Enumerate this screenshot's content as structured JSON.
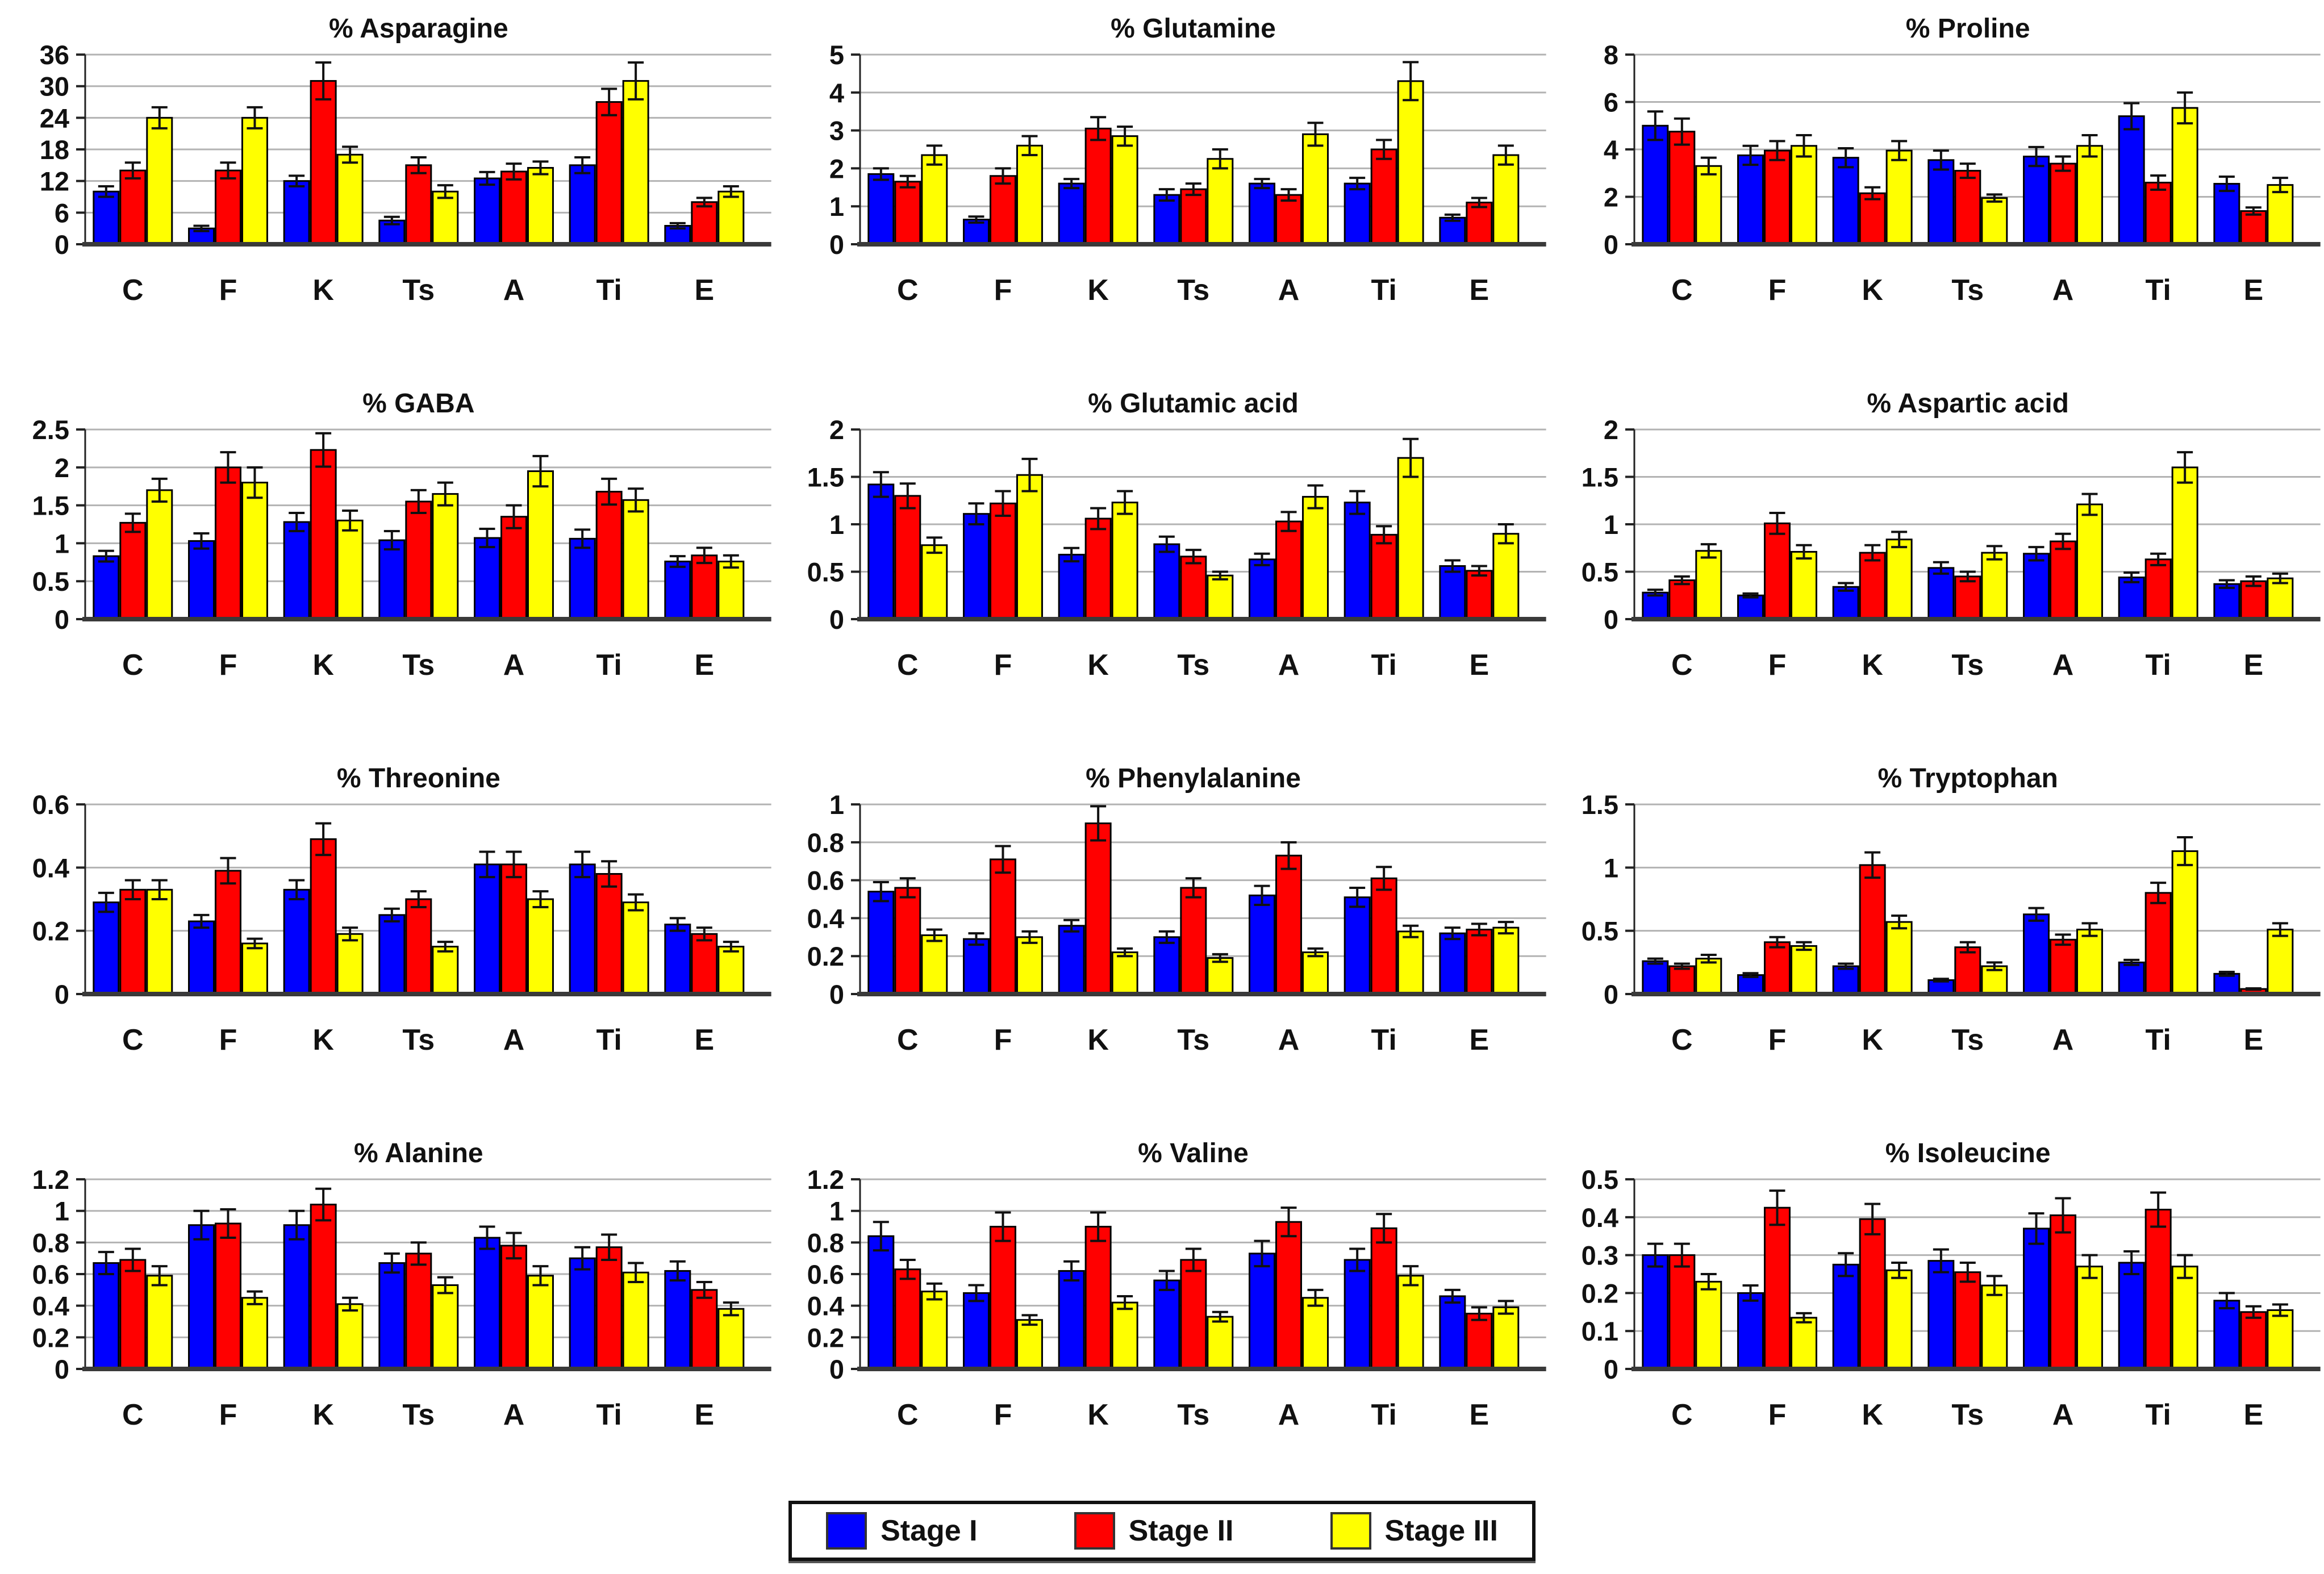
{
  "legend": {
    "items": [
      {
        "label": "Stage I",
        "color": "#0000ff"
      },
      {
        "label": "Stage II",
        "color": "#ff0000"
      },
      {
        "label": "Stage III",
        "color": "#ffff00"
      }
    ]
  },
  "chart_data": [
    {
      "type": "bar",
      "title": "% Asparagine",
      "categories": [
        "C",
        "F",
        "K",
        "Ts",
        "A",
        "Ti",
        "E"
      ],
      "ylim": [
        0,
        36
      ],
      "yticks": [
        0,
        6,
        12,
        18,
        24,
        30,
        36
      ],
      "grid": true,
      "legend_position": "bottom-shared",
      "series": [
        {
          "name": "Stage I",
          "color": "#0000ff",
          "values": [
            10,
            3,
            12,
            4.5,
            12.5,
            15,
            3.5
          ],
          "errors": [
            1,
            0.5,
            1,
            0.7,
            1.2,
            1.5,
            0.5
          ]
        },
        {
          "name": "Stage II",
          "color": "#ff0000",
          "values": [
            14,
            14,
            31,
            15,
            13.8,
            27,
            8
          ],
          "errors": [
            1.5,
            1.5,
            3.5,
            1.5,
            1.5,
            2.5,
            0.8
          ]
        },
        {
          "name": "Stage III",
          "color": "#ffff00",
          "values": [
            24,
            24,
            17,
            10,
            14.5,
            31,
            10
          ],
          "errors": [
            2,
            2,
            1.5,
            1.2,
            1.2,
            3.5,
            1
          ]
        }
      ]
    },
    {
      "type": "bar",
      "title": "% Glutamine",
      "categories": [
        "C",
        "F",
        "K",
        "Ts",
        "A",
        "Ti",
        "E"
      ],
      "ylim": [
        0,
        5
      ],
      "yticks": [
        0,
        1,
        2,
        3,
        4,
        5
      ],
      "grid": true,
      "series": [
        {
          "name": "Stage I",
          "color": "#0000ff",
          "values": [
            1.85,
            0.65,
            1.6,
            1.3,
            1.6,
            1.6,
            0.7
          ],
          "errors": [
            0.15,
            0.08,
            0.12,
            0.15,
            0.12,
            0.15,
            0.08
          ]
        },
        {
          "name": "Stage II",
          "color": "#ff0000",
          "values": [
            1.65,
            1.8,
            3.05,
            1.45,
            1.3,
            2.5,
            1.1
          ],
          "errors": [
            0.15,
            0.2,
            0.3,
            0.15,
            0.15,
            0.25,
            0.12
          ]
        },
        {
          "name": "Stage III",
          "color": "#ffff00",
          "values": [
            2.35,
            2.6,
            2.85,
            2.25,
            2.9,
            4.3,
            2.35
          ],
          "errors": [
            0.25,
            0.25,
            0.25,
            0.25,
            0.3,
            0.5,
            0.25
          ]
        }
      ]
    },
    {
      "type": "bar",
      "title": "% Proline",
      "categories": [
        "C",
        "F",
        "K",
        "Ts",
        "A",
        "Ti",
        "E"
      ],
      "ylim": [
        0,
        8
      ],
      "yticks": [
        0,
        2,
        4,
        6,
        8
      ],
      "grid": true,
      "series": [
        {
          "name": "Stage I",
          "color": "#0000ff",
          "values": [
            5.0,
            3.75,
            3.65,
            3.55,
            3.7,
            5.4,
            2.55
          ],
          "errors": [
            0.6,
            0.4,
            0.4,
            0.4,
            0.4,
            0.55,
            0.3
          ]
        },
        {
          "name": "Stage II",
          "color": "#ff0000",
          "values": [
            4.75,
            3.95,
            2.15,
            3.1,
            3.4,
            2.6,
            1.4
          ],
          "errors": [
            0.55,
            0.4,
            0.25,
            0.3,
            0.3,
            0.3,
            0.15
          ]
        },
        {
          "name": "Stage III",
          "color": "#ffff00",
          "values": [
            3.3,
            4.15,
            3.95,
            1.95,
            4.15,
            5.75,
            2.5
          ],
          "errors": [
            0.35,
            0.45,
            0.4,
            0.15,
            0.45,
            0.65,
            0.3
          ]
        }
      ]
    },
    {
      "type": "bar",
      "title": "% GABA",
      "categories": [
        "C",
        "F",
        "K",
        "Ts",
        "A",
        "Ti",
        "E"
      ],
      "ylim": [
        0,
        2.5
      ],
      "yticks": [
        0,
        0.5,
        1,
        1.5,
        2,
        2.5
      ],
      "grid": true,
      "series": [
        {
          "name": "Stage I",
          "color": "#0000ff",
          "values": [
            0.83,
            1.03,
            1.28,
            1.04,
            1.07,
            1.06,
            0.76
          ],
          "errors": [
            0.07,
            0.1,
            0.12,
            0.12,
            0.12,
            0.12,
            0.07
          ]
        },
        {
          "name": "Stage II",
          "color": "#ff0000",
          "values": [
            1.27,
            2.0,
            2.23,
            1.55,
            1.35,
            1.68,
            0.84
          ],
          "errors": [
            0.12,
            0.2,
            0.22,
            0.15,
            0.15,
            0.17,
            0.1
          ]
        },
        {
          "name": "Stage III",
          "color": "#ffff00",
          "values": [
            1.7,
            1.8,
            1.3,
            1.65,
            1.95,
            1.57,
            0.76
          ],
          "errors": [
            0.15,
            0.2,
            0.13,
            0.15,
            0.2,
            0.15,
            0.08
          ]
        }
      ]
    },
    {
      "type": "bar",
      "title": "% Glutamic acid",
      "categories": [
        "C",
        "F",
        "K",
        "Ts",
        "A",
        "Ti",
        "E"
      ],
      "ylim": [
        0,
        2
      ],
      "yticks": [
        0,
        0.5,
        1,
        1.5,
        2
      ],
      "grid": true,
      "series": [
        {
          "name": "Stage I",
          "color": "#0000ff",
          "values": [
            1.42,
            1.11,
            0.68,
            0.79,
            0.63,
            1.23,
            0.56
          ],
          "errors": [
            0.13,
            0.11,
            0.07,
            0.08,
            0.06,
            0.12,
            0.06
          ]
        },
        {
          "name": "Stage II",
          "color": "#ff0000",
          "values": [
            1.3,
            1.22,
            1.06,
            0.66,
            1.03,
            0.89,
            0.51
          ],
          "errors": [
            0.13,
            0.13,
            0.11,
            0.07,
            0.1,
            0.09,
            0.05
          ]
        },
        {
          "name": "Stage III",
          "color": "#ffff00",
          "values": [
            0.78,
            1.52,
            1.23,
            0.46,
            1.29,
            1.7,
            0.9
          ],
          "errors": [
            0.08,
            0.17,
            0.12,
            0.04,
            0.12,
            0.2,
            0.1
          ]
        }
      ]
    },
    {
      "type": "bar",
      "title": "% Aspartic acid",
      "categories": [
        "C",
        "F",
        "K",
        "Ts",
        "A",
        "Ti",
        "E"
      ],
      "ylim": [
        0,
        2
      ],
      "yticks": [
        0,
        0.5,
        1,
        1.5,
        2
      ],
      "grid": true,
      "series": [
        {
          "name": "Stage I",
          "color": "#0000ff",
          "values": [
            0.28,
            0.25,
            0.34,
            0.54,
            0.69,
            0.44,
            0.37
          ],
          "errors": [
            0.03,
            0.02,
            0.04,
            0.06,
            0.07,
            0.05,
            0.04
          ]
        },
        {
          "name": "Stage II",
          "color": "#ff0000",
          "values": [
            0.41,
            1.01,
            0.7,
            0.45,
            0.82,
            0.63,
            0.4
          ],
          "errors": [
            0.04,
            0.11,
            0.08,
            0.05,
            0.08,
            0.06,
            0.05
          ]
        },
        {
          "name": "Stage III",
          "color": "#ffff00",
          "values": [
            0.72,
            0.71,
            0.84,
            0.7,
            1.21,
            1.6,
            0.43
          ],
          "errors": [
            0.07,
            0.07,
            0.08,
            0.07,
            0.11,
            0.16,
            0.05
          ]
        }
      ]
    },
    {
      "type": "bar",
      "title": "% Threonine",
      "categories": [
        "C",
        "F",
        "K",
        "Ts",
        "A",
        "Ti",
        "E"
      ],
      "ylim": [
        0,
        0.6
      ],
      "yticks": [
        0,
        0.2,
        0.4,
        0.6
      ],
      "grid": true,
      "series": [
        {
          "name": "Stage I",
          "color": "#0000ff",
          "values": [
            0.29,
            0.23,
            0.33,
            0.25,
            0.41,
            0.41,
            0.22
          ],
          "errors": [
            0.03,
            0.02,
            0.03,
            0.02,
            0.04,
            0.04,
            0.02
          ]
        },
        {
          "name": "Stage II",
          "color": "#ff0000",
          "values": [
            0.33,
            0.39,
            0.49,
            0.3,
            0.41,
            0.38,
            0.19
          ],
          "errors": [
            0.03,
            0.04,
            0.05,
            0.025,
            0.04,
            0.04,
            0.02
          ]
        },
        {
          "name": "Stage III",
          "color": "#ffff00",
          "values": [
            0.33,
            0.16,
            0.19,
            0.15,
            0.3,
            0.29,
            0.15
          ],
          "errors": [
            0.03,
            0.015,
            0.02,
            0.015,
            0.025,
            0.025,
            0.015
          ]
        }
      ]
    },
    {
      "type": "bar",
      "title": "% Phenylalanine",
      "categories": [
        "C",
        "F",
        "K",
        "Ts",
        "A",
        "Ti",
        "E"
      ],
      "ylim": [
        0,
        1
      ],
      "yticks": [
        0,
        0.2,
        0.4,
        0.6,
        0.8,
        1
      ],
      "grid": true,
      "series": [
        {
          "name": "Stage I",
          "color": "#0000ff",
          "values": [
            0.54,
            0.29,
            0.36,
            0.3,
            0.52,
            0.51,
            0.32
          ],
          "errors": [
            0.05,
            0.03,
            0.03,
            0.03,
            0.05,
            0.05,
            0.03
          ]
        },
        {
          "name": "Stage II",
          "color": "#ff0000",
          "values": [
            0.56,
            0.71,
            0.9,
            0.56,
            0.73,
            0.61,
            0.34
          ],
          "errors": [
            0.05,
            0.07,
            0.09,
            0.05,
            0.07,
            0.06,
            0.03
          ]
        },
        {
          "name": "Stage III",
          "color": "#ffff00",
          "values": [
            0.31,
            0.3,
            0.22,
            0.19,
            0.22,
            0.33,
            0.35
          ],
          "errors": [
            0.03,
            0.03,
            0.02,
            0.02,
            0.02,
            0.03,
            0.03
          ]
        }
      ]
    },
    {
      "type": "bar",
      "title": "% Tryptophan",
      "categories": [
        "C",
        "F",
        "K",
        "Ts",
        "A",
        "Ti",
        "E"
      ],
      "ylim": [
        0,
        1.5
      ],
      "yticks": [
        0,
        0.5,
        1,
        1.5
      ],
      "grid": true,
      "series": [
        {
          "name": "Stage I",
          "color": "#0000ff",
          "values": [
            0.26,
            0.15,
            0.22,
            0.11,
            0.63,
            0.25,
            0.16
          ],
          "errors": [
            0.02,
            0.015,
            0.02,
            0.01,
            0.05,
            0.02,
            0.015
          ]
        },
        {
          "name": "Stage II",
          "color": "#ff0000",
          "values": [
            0.22,
            0.41,
            1.02,
            0.37,
            0.43,
            0.8,
            0.04
          ],
          "errors": [
            0.02,
            0.04,
            0.1,
            0.04,
            0.04,
            0.08,
            0.005
          ]
        },
        {
          "name": "Stage III",
          "color": "#ffff00",
          "values": [
            0.28,
            0.38,
            0.57,
            0.22,
            0.51,
            1.13,
            0.51
          ],
          "errors": [
            0.03,
            0.03,
            0.05,
            0.03,
            0.05,
            0.11,
            0.05
          ]
        }
      ]
    },
    {
      "type": "bar",
      "title": "% Alanine",
      "categories": [
        "C",
        "F",
        "K",
        "Ts",
        "A",
        "Ti",
        "E"
      ],
      "ylim": [
        0,
        1.2
      ],
      "yticks": [
        0,
        0.2,
        0.4,
        0.6,
        0.8,
        1,
        1.2
      ],
      "grid": true,
      "series": [
        {
          "name": "Stage I",
          "color": "#0000ff",
          "values": [
            0.67,
            0.91,
            0.91,
            0.67,
            0.83,
            0.7,
            0.62
          ],
          "errors": [
            0.07,
            0.09,
            0.09,
            0.06,
            0.07,
            0.07,
            0.06
          ]
        },
        {
          "name": "Stage II",
          "color": "#ff0000",
          "values": [
            0.69,
            0.92,
            1.04,
            0.73,
            0.78,
            0.77,
            0.5
          ],
          "errors": [
            0.07,
            0.09,
            0.1,
            0.07,
            0.08,
            0.08,
            0.05
          ]
        },
        {
          "name": "Stage III",
          "color": "#ffff00",
          "values": [
            0.59,
            0.45,
            0.41,
            0.53,
            0.59,
            0.61,
            0.38
          ],
          "errors": [
            0.06,
            0.04,
            0.04,
            0.05,
            0.06,
            0.06,
            0.04
          ]
        }
      ]
    },
    {
      "type": "bar",
      "title": "% Valine",
      "categories": [
        "C",
        "F",
        "K",
        "Ts",
        "A",
        "Ti",
        "E"
      ],
      "ylim": [
        0,
        1.2
      ],
      "yticks": [
        0,
        0.2,
        0.4,
        0.6,
        0.8,
        1,
        1.2
      ],
      "grid": true,
      "series": [
        {
          "name": "Stage I",
          "color": "#0000ff",
          "values": [
            0.84,
            0.48,
            0.62,
            0.56,
            0.73,
            0.69,
            0.46
          ],
          "errors": [
            0.09,
            0.05,
            0.06,
            0.06,
            0.08,
            0.07,
            0.04
          ]
        },
        {
          "name": "Stage II",
          "color": "#ff0000",
          "values": [
            0.63,
            0.9,
            0.9,
            0.69,
            0.93,
            0.89,
            0.35
          ],
          "errors": [
            0.06,
            0.09,
            0.09,
            0.07,
            0.09,
            0.09,
            0.04
          ]
        },
        {
          "name": "Stage III",
          "color": "#ffff00",
          "values": [
            0.49,
            0.31,
            0.42,
            0.33,
            0.45,
            0.59,
            0.39
          ],
          "errors": [
            0.05,
            0.03,
            0.04,
            0.03,
            0.05,
            0.06,
            0.04
          ]
        }
      ]
    },
    {
      "type": "bar",
      "title": "% Isoleucine",
      "categories": [
        "C",
        "F",
        "K",
        "Ts",
        "A",
        "Ti",
        "E"
      ],
      "ylim": [
        0,
        0.5
      ],
      "yticks": [
        0,
        0.1,
        0.2,
        0.3,
        0.4,
        0.5
      ],
      "grid": true,
      "series": [
        {
          "name": "Stage I",
          "color": "#0000ff",
          "values": [
            0.3,
            0.2,
            0.275,
            0.285,
            0.37,
            0.28,
            0.18
          ],
          "errors": [
            0.03,
            0.02,
            0.03,
            0.03,
            0.04,
            0.03,
            0.02
          ]
        },
        {
          "name": "Stage II",
          "color": "#ff0000",
          "values": [
            0.3,
            0.425,
            0.395,
            0.255,
            0.405,
            0.42,
            0.15
          ],
          "errors": [
            0.03,
            0.045,
            0.04,
            0.025,
            0.045,
            0.045,
            0.015
          ]
        },
        {
          "name": "Stage III",
          "color": "#ffff00",
          "values": [
            0.23,
            0.135,
            0.26,
            0.22,
            0.27,
            0.27,
            0.155
          ],
          "errors": [
            0.02,
            0.012,
            0.02,
            0.025,
            0.03,
            0.03,
            0.015
          ]
        }
      ]
    }
  ]
}
